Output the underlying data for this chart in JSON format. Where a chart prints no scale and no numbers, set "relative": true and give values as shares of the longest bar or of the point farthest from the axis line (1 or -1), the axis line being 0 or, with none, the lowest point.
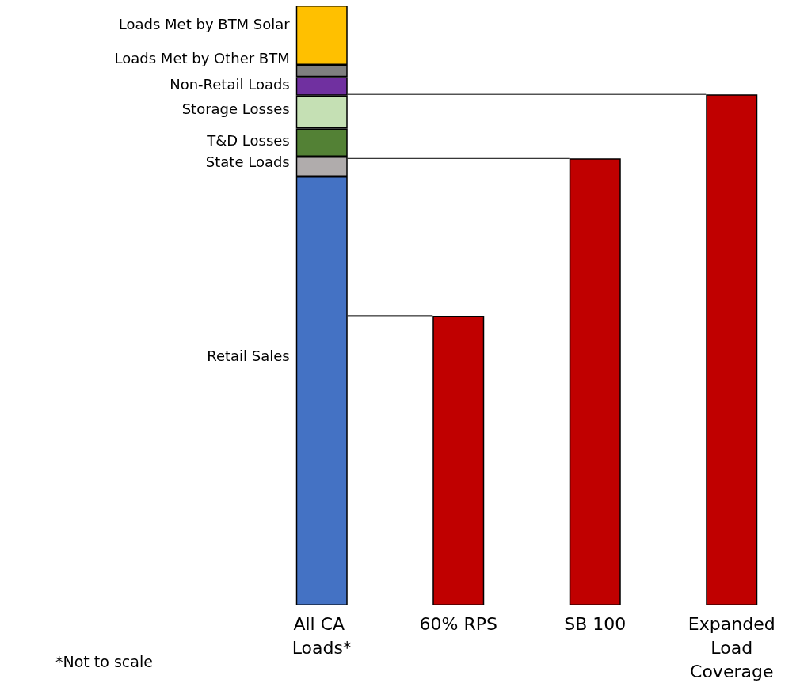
{
  "chart_data": {
    "type": "bar",
    "stacked": true,
    "relative": true,
    "categories": [
      "All CA Loads*",
      "60% RPS",
      "SB 100",
      "Expanded Load Coverage"
    ],
    "series": [
      {
        "name": "Retail Sales",
        "color": "#4472c4",
        "values": [
          0.715,
          null,
          null,
          null
        ]
      },
      {
        "name": "State Loads",
        "color": "#b0acac",
        "values": [
          0.033,
          null,
          null,
          null
        ]
      },
      {
        "name": "T&D Losses",
        "color": "#538135",
        "values": [
          0.047,
          null,
          null,
          null
        ]
      },
      {
        "name": "Storage Losses",
        "color": "#c5e0b4",
        "values": [
          0.055,
          null,
          null,
          null
        ]
      },
      {
        "name": "Non-Retail Loads",
        "color": "#7030a0",
        "values": [
          0.031,
          null,
          null,
          null
        ]
      },
      {
        "name": "Loads Met by Other BTM",
        "color": "#7f7f7f",
        "values": [
          0.02,
          null,
          null,
          null
        ]
      },
      {
        "name": "Loads Met by BTM Solar",
        "color": "#ffc000",
        "values": [
          0.099,
          null,
          null,
          null
        ]
      },
      {
        "color": "#c00000",
        "values": [
          null,
          0.483,
          0.745,
          0.852
        ]
      }
    ],
    "ref_lines": [
      {
        "axis": "y",
        "value": 0.483,
        "color": "#000000"
      },
      {
        "axis": "y",
        "value": 0.745,
        "color": "#000000"
      },
      {
        "axis": "y",
        "value": 0.852,
        "color": "#000000"
      }
    ],
    "annotations": [
      "*Not to scale"
    ],
    "legend": false
  }
}
